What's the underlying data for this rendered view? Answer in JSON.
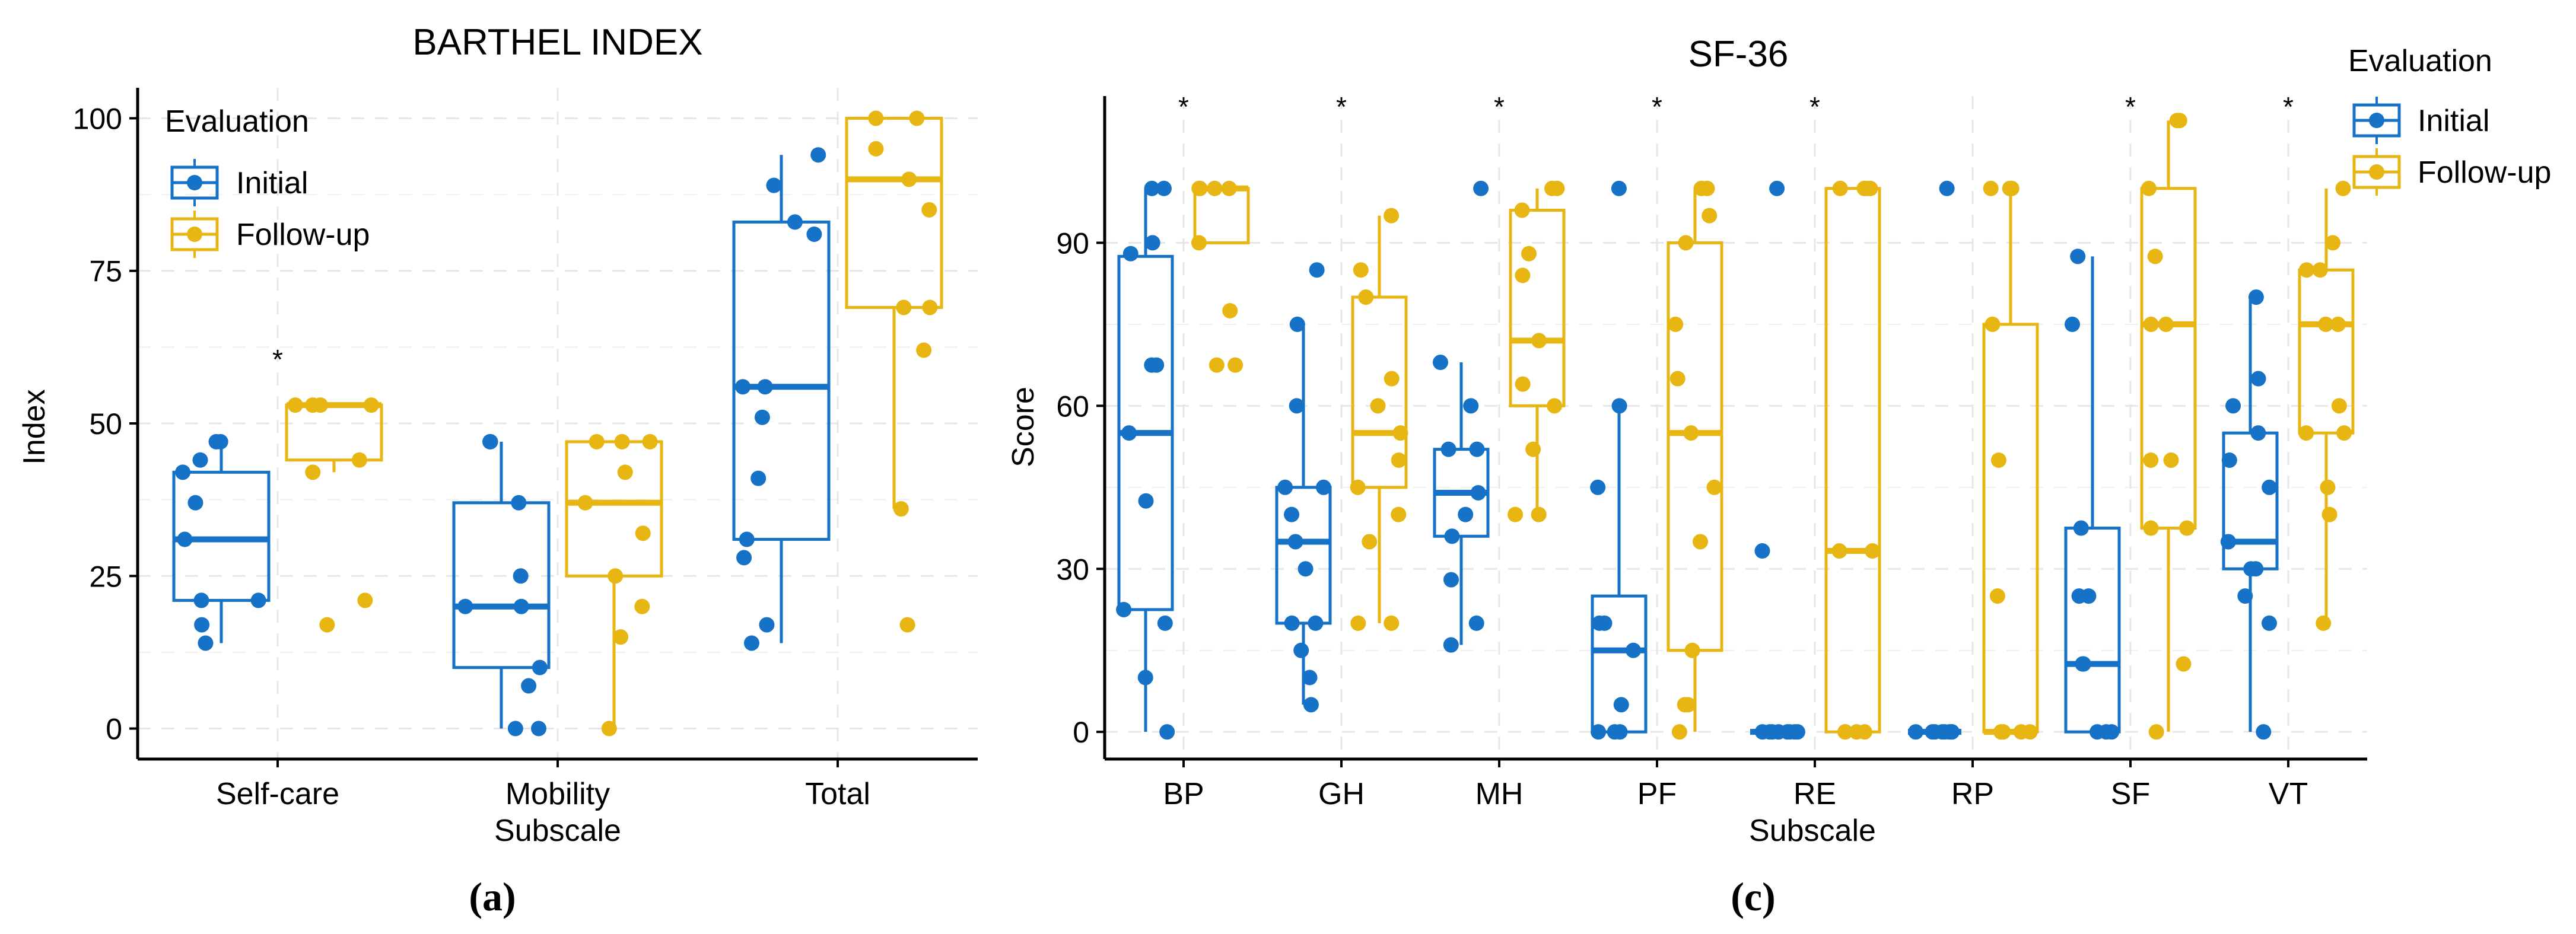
{
  "chart_data": [
    {
      "type": "box",
      "title": "BARTHEL INDEX",
      "xlabel": "Subscale",
      "ylabel": "Index",
      "ylim": [
        -5,
        105
      ],
      "yticks": [
        0,
        25,
        50,
        75,
        100
      ],
      "grid": true,
      "panel_label": "(a)",
      "legend": {
        "title": "Evaluation",
        "placement": "top-left-inside",
        "entries": [
          "Initial",
          "Follow-up"
        ]
      },
      "categories": [
        "Self-care",
        "Mobility",
        "Total"
      ],
      "series": [
        {
          "name": "Initial",
          "color": "#1672c6",
          "boxes": [
            {
              "category": "Self-care",
              "q1": 21,
              "median": 31,
              "q3": 42,
              "whisker_low": 14,
              "whisker_high": 47,
              "points": [
                47,
                47,
                44,
                42,
                37,
                31,
                21,
                21,
                17,
                14
              ]
            },
            {
              "category": "Mobility",
              "q1": 10,
              "median": 20,
              "q3": 37,
              "whisker_low": 0,
              "whisker_high": 47,
              "points": [
                47,
                47,
                37,
                25,
                20,
                20,
                10,
                7,
                0,
                0
              ]
            },
            {
              "category": "Total",
              "q1": 31,
              "median": 56,
              "q3": 83,
              "whisker_low": 14,
              "whisker_high": 94,
              "points": [
                94,
                89,
                83,
                81,
                56,
                56,
                51,
                41,
                31,
                28,
                17,
                14
              ]
            }
          ]
        },
        {
          "name": "Follow-up",
          "color": "#e8b612",
          "boxes": [
            {
              "category": "Self-care",
              "q1": 44,
              "median": 53,
              "q3": 53,
              "whisker_low": 42,
              "whisker_high": 53,
              "points": [
                53,
                53,
                53,
                53,
                44,
                42,
                21,
                17
              ]
            },
            {
              "category": "Mobility",
              "q1": 25,
              "median": 37,
              "q3": 47,
              "whisker_low": 0,
              "whisker_high": 47,
              "points": [
                47,
                47,
                47,
                42,
                37,
                32,
                25,
                20,
                15,
                0
              ]
            },
            {
              "category": "Total",
              "q1": 69,
              "median": 90,
              "q3": 100,
              "whisker_low": 36,
              "whisker_high": 100,
              "points": [
                100,
                100,
                95,
                90,
                85,
                69,
                69,
                62,
                36,
                17
              ]
            }
          ]
        }
      ],
      "annotations": [
        {
          "text": "*",
          "category": "Self-care"
        }
      ]
    },
    {
      "type": "box",
      "title": "SF-36",
      "xlabel": "Subscale",
      "ylabel": "Score",
      "ylim": [
        -5,
        117
      ],
      "yticks": [
        0,
        30,
        60,
        90
      ],
      "grid": true,
      "panel_label": "(c)",
      "legend": {
        "title": "Evaluation",
        "placement": "right",
        "entries": [
          "Initial",
          "Follow-up"
        ]
      },
      "categories": [
        "BP",
        "GH",
        "MH",
        "PF",
        "RE",
        "RP",
        "SF",
        "VT"
      ],
      "series": [
        {
          "name": "Initial",
          "color": "#1672c6",
          "boxes": [
            {
              "category": "BP",
              "q1": 22.5,
              "median": 55,
              "q3": 87.5,
              "whisker_low": 0,
              "whisker_high": 100,
              "points": [
                100,
                100,
                90,
                88,
                67.5,
                67.5,
                55,
                42.5,
                22.5,
                20,
                10,
                0
              ]
            },
            {
              "category": "GH",
              "q1": 20,
              "median": 35,
              "q3": 45,
              "whisker_low": 5,
              "whisker_high": 75,
              "points": [
                85,
                75,
                60,
                45,
                45,
                40,
                35,
                30,
                20,
                20,
                15,
                10,
                5
              ]
            },
            {
              "category": "MH",
              "q1": 36,
              "median": 44,
              "q3": 52,
              "whisker_low": 16,
              "whisker_high": 68,
              "points": [
                100,
                68,
                60,
                52,
                52,
                44,
                40,
                36,
                28,
                20,
                16
              ]
            },
            {
              "category": "PF",
              "q1": 0,
              "median": 15,
              "q3": 25,
              "whisker_low": 0,
              "whisker_high": 60,
              "points": [
                100,
                60,
                45,
                20,
                20,
                15,
                5,
                0,
                0,
                0
              ]
            },
            {
              "category": "RE",
              "q1": 0,
              "median": 0,
              "q3": 0,
              "whisker_low": 0,
              "whisker_high": 0,
              "points": [
                100,
                33.3,
                0,
                0,
                0,
                0,
                0,
                0,
                0,
                0
              ]
            },
            {
              "category": "RP",
              "q1": 0,
              "median": 0,
              "q3": 0,
              "whisker_low": 0,
              "whisker_high": 0,
              "points": [
                100,
                0,
                0,
                0,
                0,
                0,
                0,
                0,
                0,
                0
              ]
            },
            {
              "category": "SF",
              "q1": 0,
              "median": 12.5,
              "q3": 37.5,
              "whisker_low": 0,
              "whisker_high": 87.5,
              "points": [
                87.5,
                75,
                37.5,
                25,
                25,
                12.5,
                12.5,
                0,
                0,
                0
              ]
            },
            {
              "category": "VT",
              "q1": 30,
              "median": 35,
              "q3": 55,
              "whisker_low": 0,
              "whisker_high": 80,
              "points": [
                80,
                65,
                60,
                55,
                50,
                45,
                35,
                35,
                30,
                30,
                25,
                20,
                0
              ]
            }
          ]
        },
        {
          "name": "Follow-up",
          "color": "#e8b612",
          "boxes": [
            {
              "category": "BP",
              "q1": 90,
              "median": 100,
              "q3": 100,
              "whisker_low": 90,
              "whisker_high": 100,
              "points": [
                100,
                100,
                100,
                100,
                90,
                77.5,
                67.5,
                67.5
              ]
            },
            {
              "category": "GH",
              "q1": 45,
              "median": 55,
              "q3": 80,
              "whisker_low": 20,
              "whisker_high": 95,
              "points": [
                95,
                85,
                80,
                65,
                60,
                55,
                50,
                45,
                40,
                35,
                20,
                20
              ]
            },
            {
              "category": "MH",
              "q1": 60,
              "median": 72,
              "q3": 96,
              "whisker_low": 40,
              "whisker_high": 100,
              "points": [
                100,
                100,
                96,
                88,
                84,
                72,
                64,
                60,
                52,
                40,
                40
              ]
            },
            {
              "category": "PF",
              "q1": 15,
              "median": 55,
              "q3": 90,
              "whisker_low": 0,
              "whisker_high": 100,
              "points": [
                100,
                100,
                95,
                90,
                75,
                65,
                55,
                45,
                35,
                15,
                5,
                5,
                0
              ]
            },
            {
              "category": "RE",
              "q1": 0,
              "median": 33.3,
              "q3": 100,
              "whisker_low": 0,
              "whisker_high": 100,
              "points": [
                100,
                100,
                100,
                100,
                33.3,
                33.3,
                0,
                0,
                0,
                0
              ]
            },
            {
              "category": "RP",
              "q1": 0,
              "median": 0,
              "q3": 75,
              "whisker_low": 0,
              "whisker_high": 100,
              "points": [
                100,
                100,
                100,
                75,
                50,
                25,
                0,
                0,
                0,
                0
              ]
            },
            {
              "category": "SF",
              "q1": 37.5,
              "median": 75,
              "q3": 100,
              "whisker_low": 0,
              "whisker_high": 112.5,
              "points": [
                112.5,
                112.5,
                100,
                87.5,
                75,
                75,
                50,
                50,
                37.5,
                37.5,
                12.5,
                0
              ]
            },
            {
              "category": "VT",
              "q1": 55,
              "median": 75,
              "q3": 85,
              "whisker_low": 20,
              "whisker_high": 100,
              "points": [
                100,
                90,
                85,
                85,
                75,
                75,
                60,
                55,
                55,
                45,
                40,
                20
              ]
            }
          ]
        }
      ],
      "annotations": [
        {
          "text": "*",
          "category": "BP"
        },
        {
          "text": "*",
          "category": "GH"
        },
        {
          "text": "*",
          "category": "MH"
        },
        {
          "text": "*",
          "category": "PF"
        },
        {
          "text": "*",
          "category": "RE"
        },
        {
          "text": "*",
          "category": "SF"
        },
        {
          "text": "*",
          "category": "VT"
        }
      ]
    }
  ]
}
